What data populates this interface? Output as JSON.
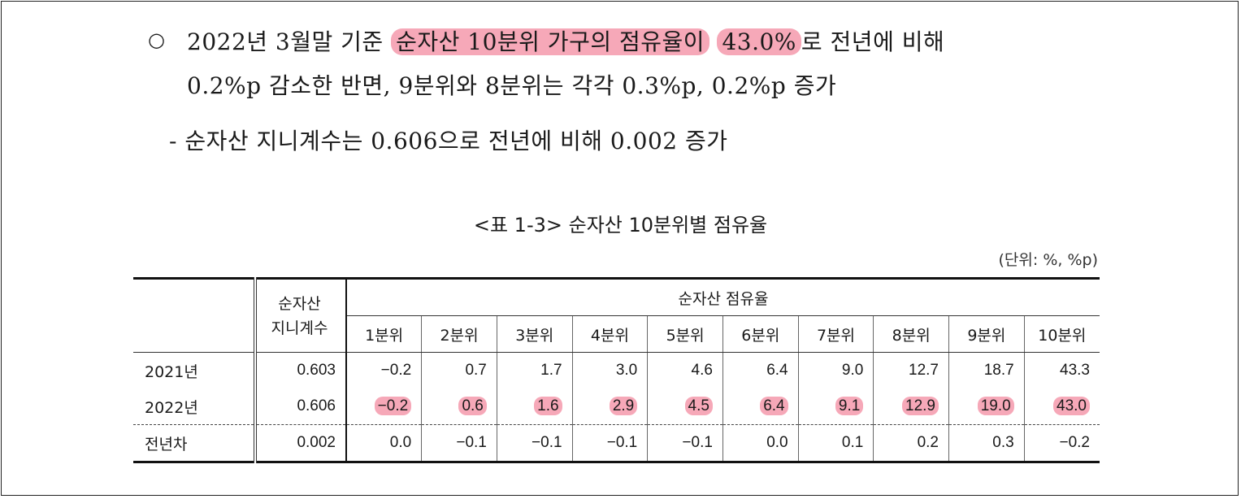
{
  "bullet_symbol": "○",
  "para1": {
    "prefix": "2022년 3월말 기준 ",
    "highlight1": "순자산 10분위 가구의 점유율이",
    "highlight2": "43.0%",
    "suffix": "로 전년에 비해",
    "line2": "0.2%p 감소한 반면, 9분위와 8분위는 각각 0.3%p, 0.2%p 증가"
  },
  "para2": "- 순자산 지니계수는 0.606으로 전년에 비해 0.002 증가",
  "table_title": "<표 1-3> 순자산 10분위별 점유율",
  "unit": "(단위: %, %p)",
  "table": {
    "gini_header": [
      "순자산",
      "지니계수"
    ],
    "share_header": "순자산 점유율",
    "deciles": [
      "1분위",
      "2분위",
      "3분위",
      "4분위",
      "5분위",
      "6분위",
      "7분위",
      "8분위",
      "9분위",
      "10분위"
    ],
    "rows": [
      {
        "label": "2021년",
        "gini": "0.603",
        "values": [
          "−0.2",
          "0.7",
          "1.7",
          "3.0",
          "4.6",
          "6.4",
          "9.0",
          "12.7",
          "18.7",
          "43.3"
        ]
      },
      {
        "label": "2022년",
        "gini": "0.606",
        "values": [
          "−0.2",
          "0.6",
          "1.6",
          "2.9",
          "4.5",
          "6.4",
          "9.1",
          "12.9",
          "19.0",
          "43.0"
        ],
        "highlighted": true
      },
      {
        "label": "전년차",
        "gini": "0.002",
        "values": [
          "0.0",
          "−0.1",
          "−0.1",
          "−0.1",
          "−0.1",
          "0.0",
          "0.1",
          "0.2",
          "0.3",
          "−0.2"
        ]
      }
    ]
  },
  "colors": {
    "highlight": "#f6a8b8",
    "text": "#1a1a1a"
  }
}
